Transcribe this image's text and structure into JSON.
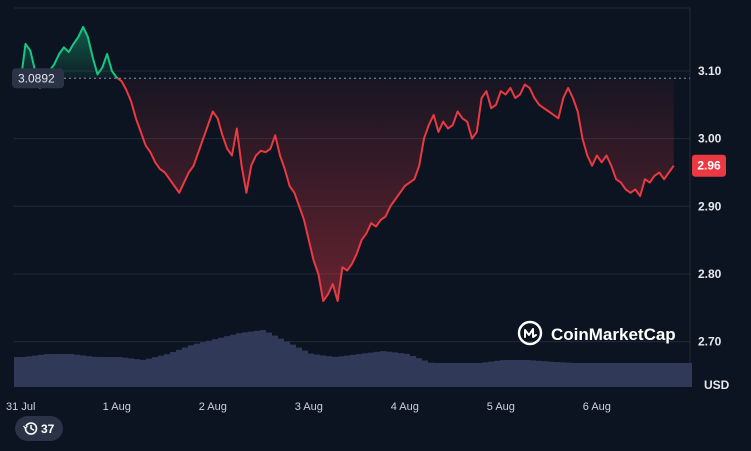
{
  "chart_data": {
    "type": "area",
    "y_ticks": [
      "3.10",
      "3.00",
      "2.90",
      "2.80",
      "2.70"
    ],
    "y_tick_values": [
      3.1,
      3.0,
      2.9,
      2.8,
      2.7
    ],
    "ylim": [
      2.633,
      3.193
    ],
    "x_ticks": [
      "31 Jul",
      "1 Aug",
      "2 Aug",
      "3 Aug",
      "4 Aug",
      "5 Aug",
      "6 Aug"
    ],
    "x_tick_values": [
      0,
      1,
      2,
      3,
      4,
      5,
      6
    ],
    "xlim": [
      -0.07,
      6.97
    ],
    "x_unit": "days",
    "currency": "USD",
    "reference_label": "3.0892",
    "reference_value": 3.0892,
    "current_label": "2.96",
    "current_value": 2.96,
    "series": [
      {
        "x": [
          0,
          0.05,
          0.1,
          0.15,
          0.2,
          0.25,
          0.3,
          0.35,
          0.4,
          0.45,
          0.5,
          0.55,
          0.6,
          0.65,
          0.7,
          0.75,
          0.8,
          0.85,
          0.9,
          0.95,
          1.0,
          1.05,
          1.1,
          1.15,
          1.2,
          1.25,
          1.3,
          1.35,
          1.4,
          1.45,
          1.5,
          1.55,
          1.6,
          1.65,
          1.7,
          1.75,
          1.8,
          1.85,
          1.9,
          1.95,
          2.0,
          2.05,
          2.1,
          2.15,
          2.2,
          2.25,
          2.3,
          2.35,
          2.4,
          2.45,
          2.5,
          2.55,
          2.6,
          2.65,
          2.7,
          2.75,
          2.8,
          2.85,
          2.9,
          2.95,
          3.0,
          3.05,
          3.1,
          3.15,
          3.2,
          3.25,
          3.3,
          3.35,
          3.4,
          3.45,
          3.5,
          3.55,
          3.6,
          3.65,
          3.7,
          3.75,
          3.8,
          3.85,
          3.9,
          3.95,
          4.0,
          4.05,
          4.1,
          4.15,
          4.2,
          4.25,
          4.3,
          4.35,
          4.4,
          4.45,
          4.5,
          4.55,
          4.6,
          4.65,
          4.7,
          4.75,
          4.8,
          4.85,
          4.9,
          4.95,
          5.0,
          5.05,
          5.1,
          5.15,
          5.2,
          5.25,
          5.3,
          5.35,
          5.4,
          5.45,
          5.5,
          5.55,
          5.6,
          5.65,
          5.7,
          5.75,
          5.8,
          5.85,
          5.9,
          5.95,
          6.0,
          6.05,
          6.1,
          6.15,
          6.2,
          6.25,
          6.3,
          6.35,
          6.4,
          6.45,
          6.5,
          6.55,
          6.6,
          6.65,
          6.7,
          6.75,
          6.8
        ],
        "values": [
          3.085,
          3.14,
          3.13,
          3.1,
          3.075,
          3.085,
          3.1,
          3.11,
          3.125,
          3.135,
          3.128,
          3.14,
          3.15,
          3.165,
          3.15,
          3.12,
          3.095,
          3.105,
          3.125,
          3.1,
          3.09,
          3.085,
          3.072,
          3.055,
          3.03,
          3.01,
          2.99,
          2.98,
          2.965,
          2.955,
          2.95,
          2.94,
          2.93,
          2.92,
          2.935,
          2.95,
          2.96,
          2.98,
          3.0,
          3.02,
          3.04,
          3.03,
          3.005,
          2.985,
          2.975,
          3.015,
          2.96,
          2.92,
          2.96,
          2.975,
          2.982,
          2.98,
          2.985,
          3.005,
          2.975,
          2.955,
          2.93,
          2.92,
          2.9,
          2.88,
          2.85,
          2.82,
          2.8,
          2.76,
          2.77,
          2.785,
          2.76,
          2.81,
          2.805,
          2.815,
          2.83,
          2.85,
          2.86,
          2.875,
          2.87,
          2.88,
          2.885,
          2.9,
          2.91,
          2.92,
          2.93,
          2.935,
          2.94,
          2.96,
          3.0,
          3.02,
          3.035,
          3.01,
          3.025,
          3.015,
          3.02,
          3.04,
          3.03,
          3.025,
          3.0,
          3.01,
          3.06,
          3.07,
          3.045,
          3.05,
          3.07,
          3.065,
          3.075,
          3.06,
          3.065,
          3.08,
          3.075,
          3.06,
          3.05,
          3.045,
          3.04,
          3.035,
          3.03,
          3.06,
          3.075,
          3.06,
          3.04,
          3.0,
          2.975,
          2.96,
          2.975,
          2.965,
          2.975,
          2.96,
          2.94,
          2.935,
          2.925,
          2.92,
          2.925,
          2.915,
          2.94,
          2.935,
          2.945,
          2.95,
          2.94,
          2.95,
          2.96
        ]
      }
    ],
    "volume": {
      "x": [
        0,
        0.25,
        0.5,
        0.75,
        1.0,
        1.25,
        1.5,
        1.75,
        2.0,
        2.25,
        2.5,
        2.75,
        3.0,
        3.25,
        3.5,
        3.75,
        4.0,
        4.25,
        4.5,
        4.75,
        5.0,
        5.25,
        5.5,
        5.75,
        6.0,
        6.25,
        6.5,
        6.75,
        6.97
      ],
      "values": [
        0.5,
        0.55,
        0.55,
        0.5,
        0.5,
        0.45,
        0.55,
        0.7,
        0.8,
        0.9,
        0.95,
        0.75,
        0.55,
        0.5,
        0.55,
        0.6,
        0.55,
        0.4,
        0.4,
        0.4,
        0.45,
        0.45,
        0.42,
        0.4,
        0.4,
        0.4,
        0.4,
        0.4,
        0.4
      ]
    },
    "colors": {
      "up": "#16c784",
      "down": "#ea3943",
      "volume": "#303a58",
      "grid": "#222a38",
      "background": "#0d1421"
    }
  },
  "watermark": "CoinMarketCap",
  "counter": {
    "value": "37",
    "icon": "history-icon"
  }
}
